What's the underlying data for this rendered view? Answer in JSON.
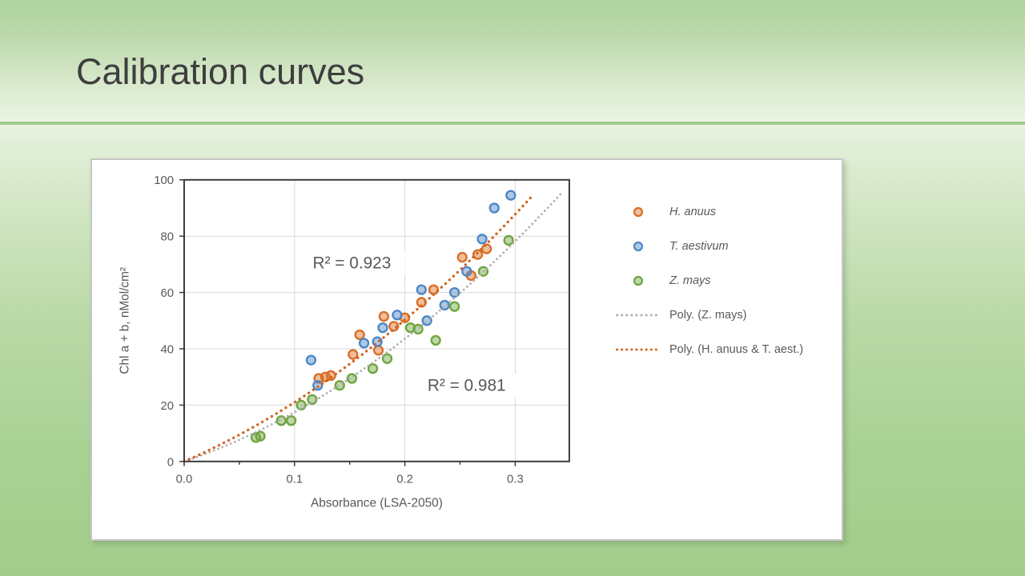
{
  "slide": {
    "title": "Calibration curves"
  },
  "colors": {
    "title_text": "#3e3e3e",
    "chart_text": "#595959",
    "axis_line": "#3a3a3a",
    "gridline": "#d9d9d9",
    "panel_background": "#ffffff",
    "slide_gradient_top": "#aed39e",
    "slide_gradient_light": "#eaf4e2",
    "slide_gradient_bottom": "#a2cd8b",
    "divider": "#a2cc8e"
  },
  "chart_data": {
    "type": "scatter",
    "xlabel": "Absorbance (LSA-2050)",
    "ylabel": "Chl a + b, nMol/cm²",
    "xlim": [
      0,
      0.349
    ],
    "ylim": [
      0,
      100
    ],
    "x_major_ticks": [
      0,
      0.1,
      0.2,
      0.3
    ],
    "x_minor_ticks": [
      0.05,
      0.15,
      0.25
    ],
    "y_ticks": [
      0,
      20,
      40,
      60,
      80,
      100
    ],
    "grid": true,
    "legend_position": "right",
    "series": [
      {
        "name": "H. anuus",
        "color": "#D96E28",
        "fill_opacity": 0.45,
        "points": [
          [
            0.122,
            29.5
          ],
          [
            0.128,
            30
          ],
          [
            0.133,
            30.5
          ],
          [
            0.153,
            38
          ],
          [
            0.159,
            45
          ],
          [
            0.176,
            39.5
          ],
          [
            0.181,
            51.5
          ],
          [
            0.19,
            48
          ],
          [
            0.2,
            51
          ],
          [
            0.215,
            56.5
          ],
          [
            0.226,
            61
          ],
          [
            0.252,
            72.5
          ],
          [
            0.26,
            66
          ],
          [
            0.266,
            73.5
          ],
          [
            0.274,
            75.5
          ]
        ]
      },
      {
        "name": "T. aestivum",
        "color": "#4D87C6",
        "fill_opacity": 0.45,
        "points": [
          [
            0.115,
            36
          ],
          [
            0.121,
            27
          ],
          [
            0.163,
            42
          ],
          [
            0.175,
            42.5
          ],
          [
            0.18,
            47.5
          ],
          [
            0.193,
            52
          ],
          [
            0.215,
            61
          ],
          [
            0.22,
            50
          ],
          [
            0.236,
            55.5
          ],
          [
            0.245,
            60
          ],
          [
            0.256,
            67.5
          ],
          [
            0.27,
            79
          ],
          [
            0.281,
            90
          ],
          [
            0.296,
            94.5
          ]
        ]
      },
      {
        "name": "Z. mays",
        "color": "#6FA53F",
        "fill_opacity": 0.45,
        "points": [
          [
            0.065,
            8.5
          ],
          [
            0.069,
            9
          ],
          [
            0.088,
            14.5
          ],
          [
            0.097,
            14.5
          ],
          [
            0.106,
            20
          ],
          [
            0.116,
            22
          ],
          [
            0.141,
            27
          ],
          [
            0.152,
            29.5
          ],
          [
            0.171,
            33
          ],
          [
            0.184,
            36.5
          ],
          [
            0.205,
            47.5
          ],
          [
            0.212,
            47
          ],
          [
            0.228,
            43
          ],
          [
            0.245,
            55
          ],
          [
            0.271,
            67.5
          ],
          [
            0.294,
            78.5
          ]
        ]
      }
    ],
    "trendlines": [
      {
        "name": "Poly. (Z. mays)",
        "color": "#B0B0B0",
        "equation": {
          "a": 429,
          "b": 132
        },
        "x_range": [
          0,
          0.342
        ],
        "r2": 0.981,
        "thickness": 2.8,
        "dot_gap": 5.6
      },
      {
        "name": "Poly. (H. anuus & T. aest.)",
        "color": "#D2651F",
        "equation": {
          "a": 412,
          "b": 169
        },
        "x_range": [
          0,
          0.316
        ],
        "r2": 0.923,
        "thickness": 3.4,
        "dot_gap": 6.8
      }
    ],
    "annotations": [
      {
        "text": "R² = 0.923",
        "x": 0.152,
        "y": 70.5
      },
      {
        "text": "R² = 0.981",
        "x": 0.256,
        "y": 27
      }
    ],
    "legend": [
      {
        "label": "H. anuus",
        "type": "marker",
        "color": "#D96E28",
        "italic": true
      },
      {
        "label": "T. aestivum",
        "type": "marker",
        "color": "#4D87C6",
        "italic": true
      },
      {
        "label": "Z. mays",
        "type": "marker",
        "color": "#6FA53F",
        "italic": true
      },
      {
        "label": "Poly. (Z. mays)",
        "type": "dotted-line",
        "color": "#B0B0B0",
        "italic": false
      },
      {
        "label": "Poly. (H. anuus & T. aest.)",
        "type": "dotted-line",
        "color": "#D2651F",
        "italic": false
      }
    ]
  }
}
